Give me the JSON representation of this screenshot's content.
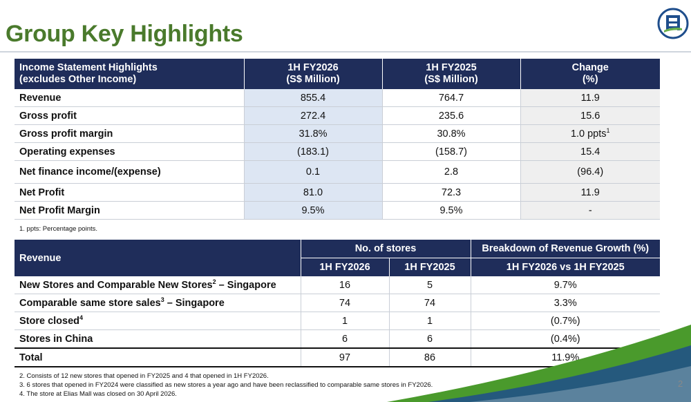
{
  "title": "Group Key Highlights",
  "page_number": "2",
  "table1": {
    "header": {
      "label_line1": "Income Statement Highlights",
      "label_line2": "(excludes Other Income)",
      "col1_line1": "1H FY2026",
      "col1_line2": "(S$ Million)",
      "col2_line1": "1H FY2025",
      "col2_line2": "(S$ Million)",
      "col3_line1": "Change",
      "col3_line2": "(%)"
    },
    "rows": [
      {
        "label": "Revenue",
        "fy2026": "855.4",
        "fy2025": "764.7",
        "change": "11.9"
      },
      {
        "label": "Gross profit",
        "fy2026": "272.4",
        "fy2025": "235.6",
        "change": "15.6"
      },
      {
        "label": "Gross profit margin",
        "fy2026": "31.8%",
        "fy2025": "30.8%",
        "change": "1.0 ppts",
        "change_sup": "1"
      },
      {
        "label": "Operating expenses",
        "fy2026": "(183.1)",
        "fy2025": "(158.7)",
        "change": "15.4"
      },
      {
        "label": "Net finance income/(expense)",
        "fy2026": "0.1",
        "fy2025": "2.8",
        "change": "(96.4)"
      },
      {
        "label": "Net Profit",
        "fy2026": "81.0",
        "fy2025": "72.3",
        "change": "11.9"
      },
      {
        "label": "Net Profit Margin",
        "fy2026": "9.5%",
        "fy2025": "9.5%",
        "change": "-"
      }
    ],
    "footnote": "1. ppts: Percentage points."
  },
  "table2": {
    "header": {
      "label": "Revenue",
      "group1": "No. of stores",
      "group2": "Breakdown of Revenue Growth (%)",
      "sub1": "1H FY2026",
      "sub2": "1H FY2025",
      "sub3": "1H FY2026 vs 1H FY2025"
    },
    "rows": [
      {
        "label_a": "New Stores and Comparable New Stores",
        "sup": "2",
        "label_b": " – Singapore",
        "fy2026": "16",
        "fy2025": "5",
        "growth": "9.7%"
      },
      {
        "label_a": "Comparable same store sales",
        "sup": "3",
        "label_b": " – Singapore",
        "fy2026": "74",
        "fy2025": "74",
        "growth": "3.3%"
      },
      {
        "label_a": "Store closed",
        "sup": "4",
        "label_b": "",
        "fy2026": "1",
        "fy2025": "1",
        "growth": "(0.7%)"
      },
      {
        "label_a": "Stores in China",
        "sup": "",
        "label_b": "",
        "fy2026": "6",
        "fy2025": "6",
        "growth": "(0.4%)"
      },
      {
        "label_a": "Total",
        "sup": "",
        "label_b": "",
        "fy2026": "97",
        "fy2025": "86",
        "growth": "11.9%"
      }
    ],
    "footnotes": [
      "2. Consists of 12 new stores that opened in FY2025 and 4 that opened in 1H FY2026.",
      "3. 6 stores that opened in FY2024 were classified as new stores a year ago and have been reclassified to comparable same stores in FY2026.",
      "4. The store at Elias Mall was closed on 30 April 2026."
    ]
  },
  "colors": {
    "title_green": "#4a7a2c",
    "header_navy": "#1f2d5a",
    "highlight_blue": "#dde6f3",
    "change_grey": "#efefef"
  }
}
